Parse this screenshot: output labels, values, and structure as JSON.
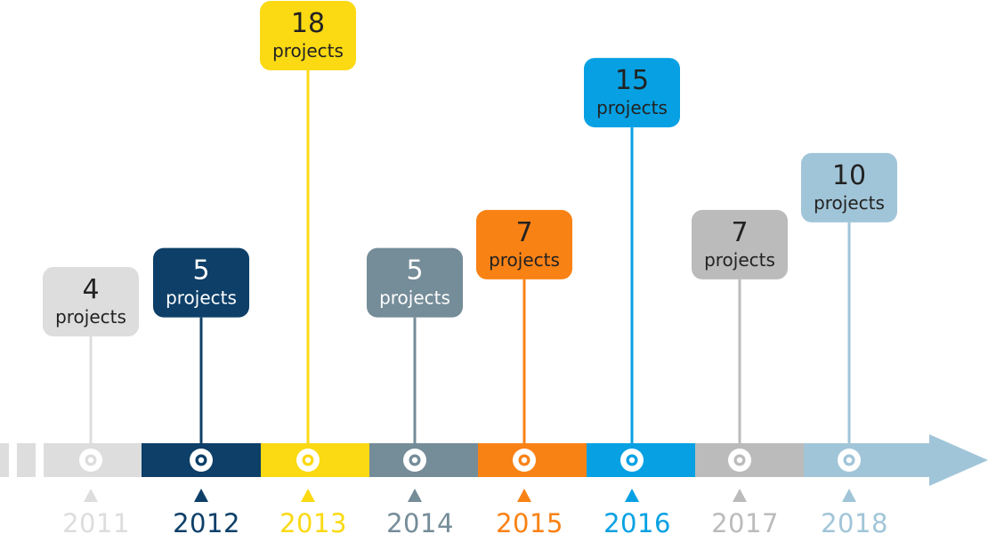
{
  "chart_data": {
    "type": "bar",
    "title": "",
    "xlabel": "",
    "ylabel": "",
    "categories": [
      "2011",
      "2012",
      "2013",
      "2014",
      "2015",
      "2016",
      "2017",
      "2018"
    ],
    "values": [
      4,
      5,
      18,
      5,
      7,
      15,
      7,
      10
    ],
    "bubble_labels": [
      "projects",
      "projects",
      "projects",
      "projects",
      "projects",
      "projects",
      "projects",
      "projects"
    ],
    "colors": [
      "#dddddd",
      "#0d3f68",
      "#fbd913",
      "#758c99",
      "#f98215",
      "#07a1e3",
      "#bbbbbb",
      "#a1c5d8"
    ],
    "text_colors": [
      "#222222",
      "#ffffff",
      "#222222",
      "#ffffff",
      "#222222",
      "#222222",
      "#222222",
      "#222222"
    ]
  }
}
